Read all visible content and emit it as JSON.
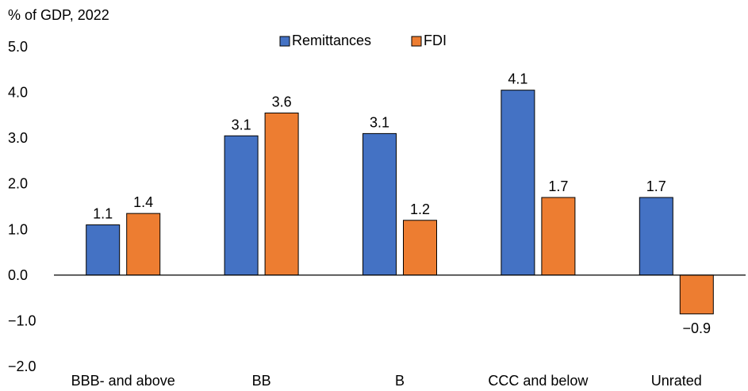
{
  "chart_data": {
    "type": "bar",
    "title": "",
    "unit_label": "% of GDP, 2022",
    "xlabel": "",
    "ylabel": "",
    "categories": [
      "BBB- and above",
      "BB",
      "B",
      "CCC and below",
      "Unrated"
    ],
    "series": [
      {
        "name": "Remittances",
        "color": "#4472C4",
        "values": [
          1.1,
          3.05,
          3.1,
          4.05,
          1.7
        ],
        "labels": [
          "1.1",
          "3.1",
          "3.1",
          "4.1",
          "1.7"
        ]
      },
      {
        "name": "FDI",
        "color": "#ED7D31",
        "values": [
          1.35,
          3.55,
          1.2,
          1.7,
          -0.85
        ],
        "labels": [
          "1.4",
          "3.6",
          "1.2",
          "1.7",
          "−0.9"
        ]
      }
    ],
    "ylim": [
      -2.0,
      5.0
    ],
    "yticks": [
      5.0,
      4.0,
      3.0,
      2.0,
      1.0,
      0.0,
      -1.0,
      -2.0
    ],
    "ytick_labels": [
      "5.0",
      "4.0",
      "3.0",
      "2.0",
      "1.0",
      "0.0",
      "−1.0",
      "−2.0"
    ],
    "grid": false,
    "legend_position": "top-center"
  }
}
